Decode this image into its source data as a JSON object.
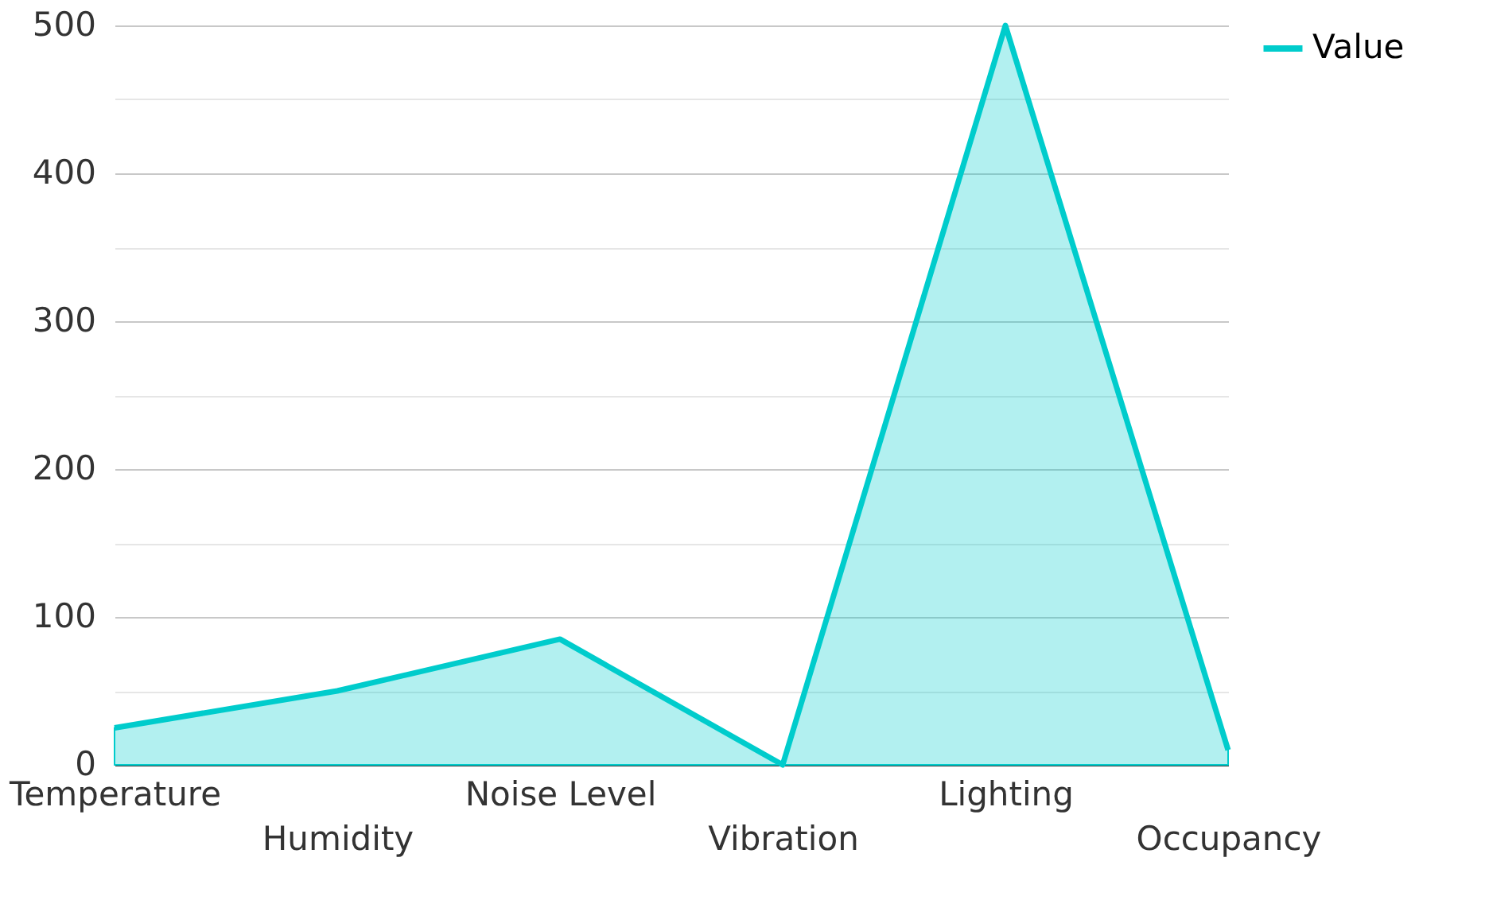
{
  "chart_data": {
    "type": "area",
    "categories": [
      "Temperature",
      "Humidity",
      "Noise Level",
      "Vibration",
      "Lighting",
      "Occupancy"
    ],
    "series": [
      {
        "name": "Value",
        "color": "#00cccc",
        "values": [
          25,
          50,
          85,
          0,
          500,
          10
        ]
      }
    ],
    "ylim": [
      0,
      500
    ],
    "yticks": [
      0,
      {
        "value": 50,
        "label": null
      },
      100,
      {
        "value": 150,
        "label": null
      },
      200,
      {
        "value": 250,
        "label": null
      },
      300,
      {
        "value": 350,
        "label": null
      },
      400,
      {
        "value": 450,
        "label": null
      },
      500
    ],
    "grid": "y",
    "legend": "top right"
  }
}
